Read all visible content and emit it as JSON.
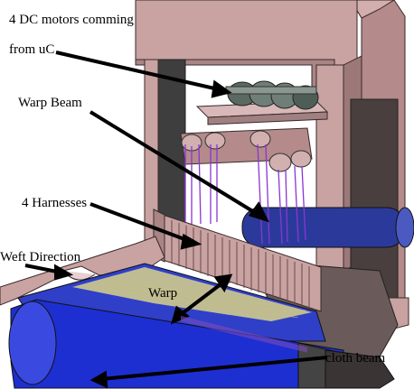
{
  "labels": {
    "motors_line1": "4 DC motors comming",
    "motors_line2": "from uC",
    "warp_beam": "Warp Beam",
    "harnesses": "4 Harnesses",
    "weft_direction": "Weft Direction",
    "warp": "Warp",
    "cloth_beam": "cloth beam"
  },
  "colors": {
    "frame": "#c9a2a2",
    "frame_dark": "#8c6a6a",
    "frame_shadow": "#5f4646",
    "warp_beam": "#2b3a9a",
    "cloth_roll": "#1d2fd1",
    "warp_threads": "#8a35d6",
    "cloth_weave": "#d8d28a",
    "motor": "#6f7f78",
    "arrow": "#000000"
  }
}
